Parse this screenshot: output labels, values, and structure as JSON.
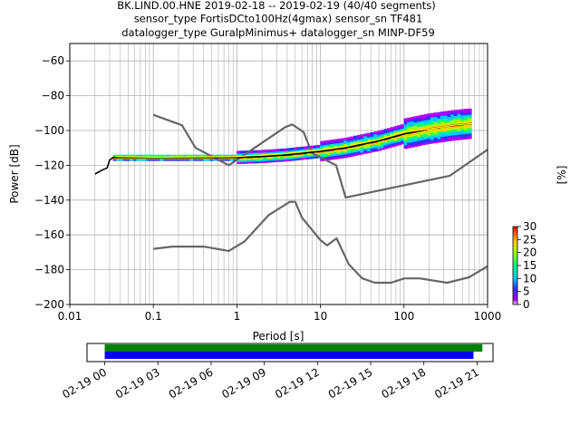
{
  "chart_data": [
    {
      "type": "line",
      "title": [
        "BK.LIND.00.HNE   2019-02-18 -- 2019-02-19  (40/40 segments)",
        "sensor_type FortisDCto100Hz(4gmax) sensor_sn TF481",
        "datalogger_type GuralpMinimus+ datalogger_sn MINP-DF59"
      ],
      "xlabel": "Period [s]",
      "ylabel": "Power [dB]",
      "x_scale": "log",
      "xlim": [
        0.01,
        1000
      ],
      "ylim": [
        -200,
        -50
      ],
      "x_ticks": [
        {
          "v": 0.01,
          "label": "0.01"
        },
        {
          "v": 0.1,
          "label": "0.1"
        },
        {
          "v": 1,
          "label": "1"
        },
        {
          "v": 10,
          "label": "10"
        },
        {
          "v": 100,
          "label": "100"
        },
        {
          "v": 1000,
          "label": "1000"
        }
      ],
      "y_ticks": [
        {
          "v": -60,
          "label": "−60"
        },
        {
          "v": -80,
          "label": "−80"
        },
        {
          "v": -100,
          "label": "−100"
        },
        {
          "v": -120,
          "label": "−120"
        },
        {
          "v": -140,
          "label": "−140"
        },
        {
          "v": -160,
          "label": "−160"
        },
        {
          "v": -180,
          "label": "−180"
        },
        {
          "v": -200,
          "label": "−200"
        }
      ],
      "grid": true,
      "series": [
        {
          "role": "new-high-noise-model",
          "color": "#666666",
          "points": [
            [
              0.1,
              -91
            ],
            [
              0.22,
              -97
            ],
            [
              0.32,
              -110
            ],
            [
              0.8,
              -120
            ],
            [
              3.8,
              -98
            ],
            [
              4.6,
              -96.5
            ],
            [
              6.3,
              -101
            ],
            [
              7.9,
              -113
            ],
            [
              15.4,
              -120
            ],
            [
              20,
              -138.5
            ],
            [
              354,
              -126
            ],
            [
              1000,
              -111
            ]
          ]
        },
        {
          "role": "new-low-noise-model",
          "color": "#666666",
          "points": [
            [
              0.1,
              -168
            ],
            [
              0.17,
              -166.7
            ],
            [
              0.4,
              -166.7
            ],
            [
              0.8,
              -169.2
            ],
            [
              1.24,
              -163.7
            ],
            [
              2.4,
              -148.6
            ],
            [
              4.3,
              -141
            ],
            [
              5,
              -141
            ],
            [
              6,
              -150
            ],
            [
              10,
              -163
            ],
            [
              12,
              -166
            ],
            [
              15.6,
              -162
            ],
            [
              21.9,
              -177
            ],
            [
              31.6,
              -185
            ],
            [
              45,
              -187.5
            ],
            [
              70,
              -187.5
            ],
            [
              101,
              -185
            ],
            [
              154,
              -185
            ],
            [
              328,
              -187.5
            ],
            [
              600,
              -184.4
            ],
            [
              1000,
              -178
            ]
          ]
        },
        {
          "role": "mean-psd",
          "color": "#000000",
          "points": [
            [
              0.02,
              -125
            ],
            [
              0.025,
              -122.5
            ],
            [
              0.028,
              -121.5
            ],
            [
              0.03,
              -117
            ],
            [
              0.033,
              -115.5
            ],
            [
              0.05,
              -115.5
            ],
            [
              0.1,
              -115.5
            ],
            [
              0.3,
              -115.5
            ],
            [
              1,
              -115.5
            ],
            [
              2,
              -115
            ],
            [
              4,
              -114
            ],
            [
              10,
              -112
            ],
            [
              20,
              -110
            ],
            [
              50,
              -106
            ],
            [
              100,
              -102
            ],
            [
              200,
              -99
            ],
            [
              400,
              -97
            ],
            [
              650,
              -96
            ]
          ]
        },
        {
          "role": "mode-psd",
          "color": "#ffff00",
          "points": [
            [
              0.035,
              -115
            ],
            [
              0.1,
              -115.3
            ],
            [
              1,
              -115
            ],
            [
              4,
              -113
            ],
            [
              10,
              -111
            ],
            [
              20,
              -109
            ],
            [
              50,
              -105
            ],
            [
              100,
              -101
            ],
            [
              200,
              -99
            ],
            [
              400,
              -97
            ],
            [
              650,
              -96
            ]
          ]
        }
      ],
      "colorbar": {
        "label": "[%]",
        "min": 0,
        "max": 30,
        "ticks": [
          0,
          5,
          10,
          15,
          20,
          25,
          30
        ]
      }
    },
    {
      "type": "timeline",
      "ticks": [
        "02-19 00",
        "02-19 03",
        "02-19 06",
        "02-19 09",
        "02-19 12",
        "02-19 15",
        "02-19 18",
        "02-19 21"
      ],
      "tick_hours": [
        0,
        3,
        6,
        9,
        12,
        15,
        18,
        21
      ],
      "xlim_hours": [
        -1,
        21.9
      ],
      "bars": [
        {
          "color": "#008000",
          "start_hour": 0,
          "end_hour": 21.3
        },
        {
          "color": "#0000ff",
          "start_hour": 0,
          "end_hour": 20.8
        }
      ]
    }
  ]
}
